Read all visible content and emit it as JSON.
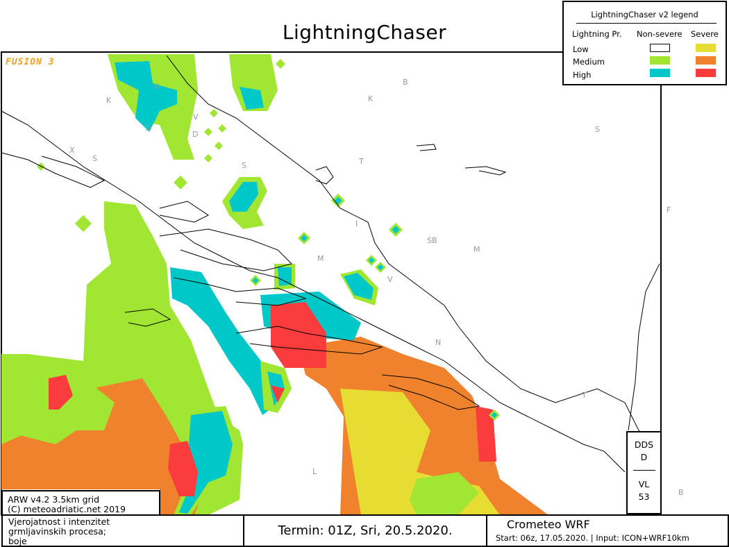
{
  "title": "LightningChaser",
  "watermark": "FUSION 3",
  "legend": {
    "title": "LightningChaser v2 legend",
    "col_label": "Lightning Pr.",
    "col_nonsevere": "Non-severe",
    "col_severe": "Severe",
    "rows": [
      {
        "label": "Low",
        "nonsevere": "#ffffff",
        "severe": "#e6dc32"
      },
      {
        "label": "Medium",
        "nonsevere": "#a0e632",
        "severe": "#f0822d"
      },
      {
        "label": "High",
        "nonsevere": "#00c8c8",
        "severe": "#fa3c3c"
      }
    ]
  },
  "info_box": {
    "line1": "ARW v4.2 3.5km grid",
    "line2": "(C) meteoadriatic.net 2019"
  },
  "side_box": {
    "top1": "DDS",
    "top2": "D",
    "bottom1": "VL",
    "bottom2": "53"
  },
  "footer": {
    "description": [
      "Vjerojatnost i intenzitet",
      "grmljavinskih procesa;",
      "boje"
    ],
    "termin": "Termin: 01Z, Sri, 20.5.2020.",
    "model": "Crometeo WRF",
    "run": "Start: 06z, 17.05.2020. | Input: ICON+WRF10km"
  },
  "map_labels": [
    "K",
    "K",
    "D",
    "D",
    "V",
    "X",
    "S",
    "S",
    "B",
    "K",
    "T",
    "S",
    "I",
    "SB",
    "M",
    "M",
    "V",
    "N",
    "T",
    "F",
    "L",
    "B"
  ]
}
